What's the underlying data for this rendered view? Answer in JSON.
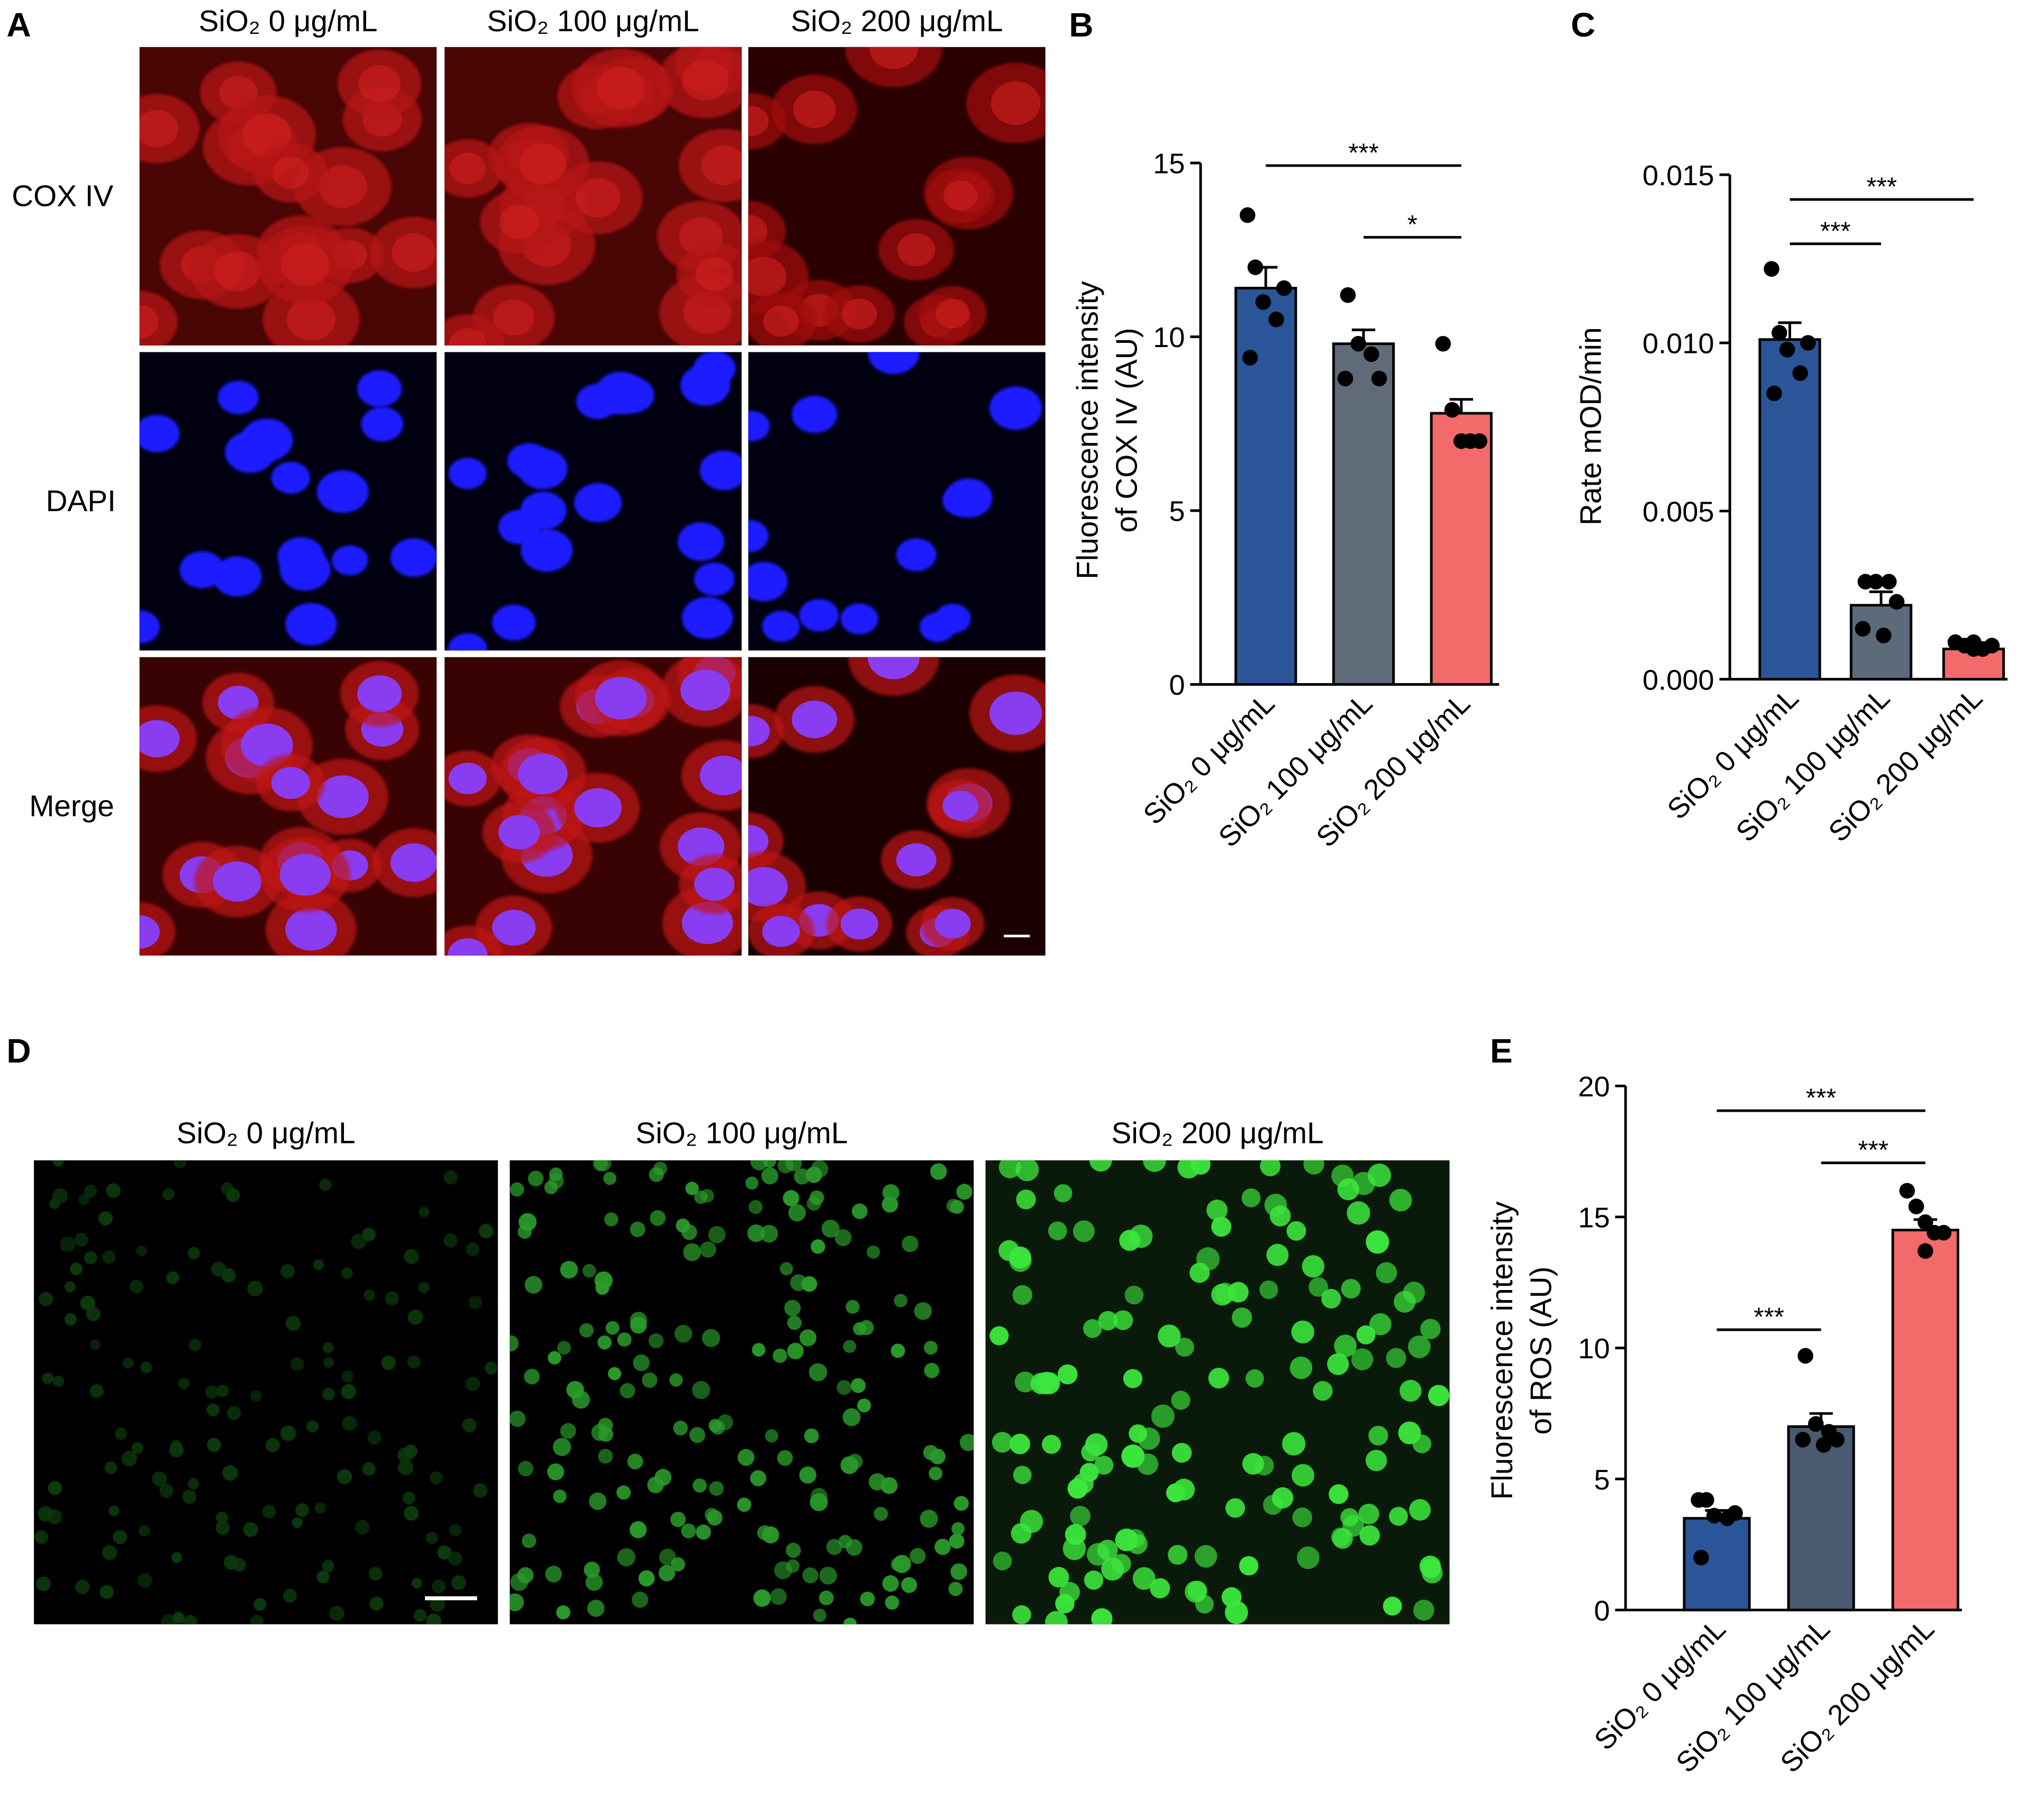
{
  "panel_letters": [
    "A",
    "B",
    "C",
    "D",
    "E"
  ],
  "panel_a": {
    "columns": [
      "SiO₂ 0 μg/mL",
      "SiO₂ 100 μg/mL",
      "SiO₂ 200 μg/mL"
    ],
    "rows": [
      "COX IV",
      "DAPI",
      "Merge"
    ]
  },
  "panel_d": {
    "columns": [
      "SiO₂ 0 μg/mL",
      "SiO₂ 100 μg/mL",
      "SiO₂ 200 μg/mL"
    ]
  },
  "chart_data": [
    {
      "type": "bar",
      "y_label": [
        "Fluorescence intensity",
        "of COX IV (AU)"
      ],
      "categories": [
        "SiO₂ 0 μg/mL",
        "SiO₂ 100 μg/mL",
        "SiO₂ 200 μg/mL"
      ],
      "values": [
        11.4,
        9.8,
        7.8
      ],
      "errors": [
        0.6,
        0.4,
        0.4
      ],
      "points": [
        [
          13.5,
          12.0,
          11.4,
          11.0,
          10.5,
          9.4
        ],
        [
          11.2,
          9.8,
          9.5,
          8.8,
          8.8
        ],
        [
          9.8,
          7.9,
          7.0,
          7.0,
          7.0,
          7.0
        ]
      ],
      "colors": [
        "#2a5599",
        "#5f6b78",
        "#f26a6a"
      ],
      "ylim": [
        0,
        15
      ],
      "yticks": [
        0,
        5,
        10,
        15
      ],
      "annotations": [
        "***",
        "*"
      ]
    },
    {
      "type": "bar",
      "y_label": [
        "Rate mOD/min"
      ],
      "categories": [
        "SiO₂ 0 μg/mL",
        "SiO₂ 100 μg/mL",
        "SiO₂ 200 μg/mL"
      ],
      "values": [
        0.0101,
        0.0022,
        0.0009
      ],
      "errors": [
        0.0005,
        0.0004,
        0.0001
      ],
      "points": [
        [
          0.0122,
          0.0103,
          0.01,
          0.0098,
          0.0091,
          0.0085
        ],
        [
          0.0029,
          0.0029,
          0.0029,
          0.0023,
          0.0015,
          0.0013
        ],
        [
          0.0011,
          0.001,
          0.0009,
          0.0009,
          0.001,
          0.0011
        ]
      ],
      "colors": [
        "#2a5599",
        "#5b6b7a",
        "#f26a6a"
      ],
      "ylim": [
        0,
        0.015
      ],
      "yticks": [
        {
          "value": 0,
          "label": "0.000"
        },
        {
          "value": 0.005,
          "label": "0.005"
        },
        {
          "value": 0.01,
          "label": "0.010"
        },
        {
          "value": 0.015,
          "label": "0.015"
        }
      ],
      "annotations": [
        "***",
        "***"
      ]
    },
    {
      "type": "bar",
      "y_label": [
        "Fluorescence intensity",
        "of ROS (AU)"
      ],
      "categories": [
        "SiO₂ 0 μg/mL",
        "SiO₂ 100 μg/mL",
        "SiO₂ 200 μg/mL"
      ],
      "values": [
        3.5,
        7.0,
        14.5
      ],
      "errors": [
        0.3,
        0.5,
        0.4
      ],
      "points": [
        [
          4.2,
          4.2,
          3.7,
          3.6,
          3.5,
          2.0
        ],
        [
          9.7,
          7.1,
          6.8,
          6.5,
          6.5,
          6.3
        ],
        [
          16.0,
          15.4,
          14.8,
          14.4,
          14.4,
          13.7
        ]
      ],
      "colors": [
        "#2a5599",
        "#4a5a70",
        "#f26a6a"
      ],
      "ylim": [
        0,
        20
      ],
      "yticks": [
        0,
        5,
        10,
        15,
        20
      ],
      "annotations": [
        "***",
        "***",
        "***"
      ]
    }
  ]
}
